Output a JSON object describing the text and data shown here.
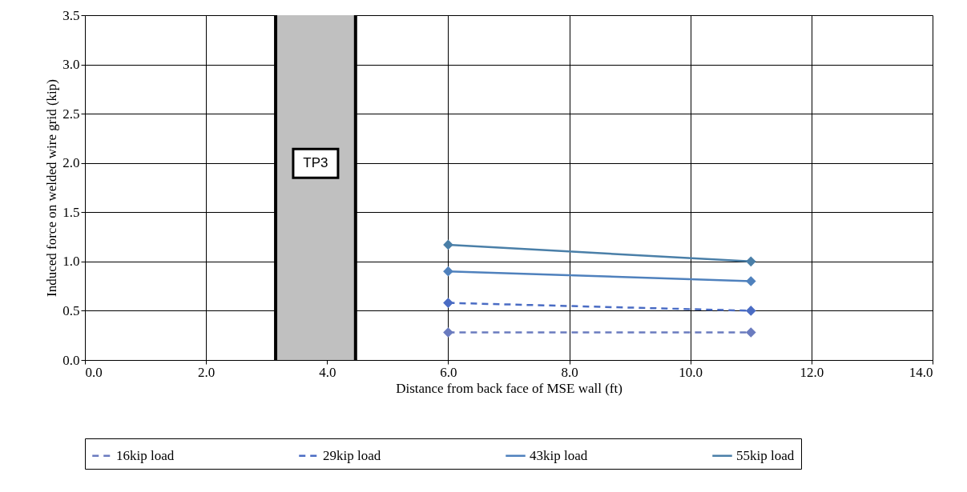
{
  "chart_data": {
    "type": "line",
    "xlabel": "Distance from back face of MSE wall (ft)",
    "ylabel": "Induced force on welded wire grid (kip)",
    "x": [
      6.0,
      11.0
    ],
    "series": [
      {
        "name": "16kip load",
        "color": "#6a7bbf",
        "values": [
          0.28,
          0.28
        ],
        "line_style": "dashed"
      },
      {
        "name": "29kip load",
        "color": "#4a6cc4",
        "values": [
          0.58,
          0.5
        ],
        "line_style": "dashed"
      },
      {
        "name": "43kip load",
        "color": "#4f81bd",
        "values": [
          0.9,
          0.8
        ],
        "line_style": "solid"
      },
      {
        "name": "55kip load",
        "color": "#4a7fa8",
        "values": [
          1.17,
          1.0
        ],
        "line_style": "solid"
      }
    ],
    "marker": "diamond",
    "xlim": [
      0,
      14
    ],
    "ylim": [
      0,
      3.5
    ],
    "xticks": [
      {
        "value": 0,
        "label": "0.0"
      },
      {
        "value": 2,
        "label": "2.0"
      },
      {
        "value": 4,
        "label": "4.0"
      },
      {
        "value": 6,
        "label": "6.0"
      },
      {
        "value": 8,
        "label": "8.0"
      },
      {
        "value": 10,
        "label": "10.0"
      },
      {
        "value": 12,
        "label": "12.0"
      },
      {
        "value": 14,
        "label": "14.0"
      }
    ],
    "yticks": [
      {
        "value": 0,
        "label": "0.0"
      },
      {
        "value": 0.5,
        "label": "0.5"
      },
      {
        "value": 1,
        "label": "1.0"
      },
      {
        "value": 1.5,
        "label": "1.5"
      },
      {
        "value": 2,
        "label": "2.0"
      },
      {
        "value": 2.5,
        "label": "2.5"
      },
      {
        "value": 3,
        "label": "3.0"
      },
      {
        "value": 3.5,
        "label": "3.5"
      }
    ],
    "bands": [
      {
        "axis": "x",
        "from": 3.15,
        "to": 4.47,
        "label": "TP3",
        "color": "#c0c0c0"
      }
    ],
    "ref_lines": [
      {
        "axis": "x",
        "value": 3.15,
        "color": "#000000"
      },
      {
        "axis": "x",
        "value": 4.47,
        "color": "#000000"
      }
    ],
    "grid": true,
    "legend": "bottom"
  }
}
